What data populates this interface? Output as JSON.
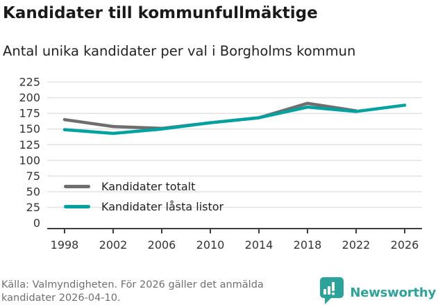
{
  "header": {
    "title": "Kandidater till kommunfullmäktige",
    "subtitle": "Antal unika kandidater per val i Borgholms kommun"
  },
  "chart_data": {
    "type": "line",
    "x": [
      1998,
      2002,
      2006,
      2010,
      2014,
      2018,
      2022,
      2026
    ],
    "series": [
      {
        "name": "Kandidater totalt",
        "color": "#6e6e6e",
        "values": [
          165,
          154,
          151,
          160,
          168,
          191,
          179,
          null
        ]
      },
      {
        "name": "Kandidater låsta listor",
        "color": "#00a2a0",
        "values": [
          149,
          143,
          150,
          160,
          168,
          185,
          178,
          188
        ]
      }
    ],
    "ylim": [
      0,
      225
    ],
    "ytick_step": 25,
    "grid": "horizontal",
    "legend_position": "inside-bottom-left",
    "axis_color": "#3d3d3d",
    "grid_color": "#e0e0e0",
    "tick_label_color": "#333333"
  },
  "footer": {
    "source_lines": [
      "Källa: Valmyndigheten. För 2026 gäller det anmälda",
      "kandidater 2026-04-10."
    ],
    "brand_name": "Newsworthy",
    "brand_color": "#2ba39a"
  }
}
